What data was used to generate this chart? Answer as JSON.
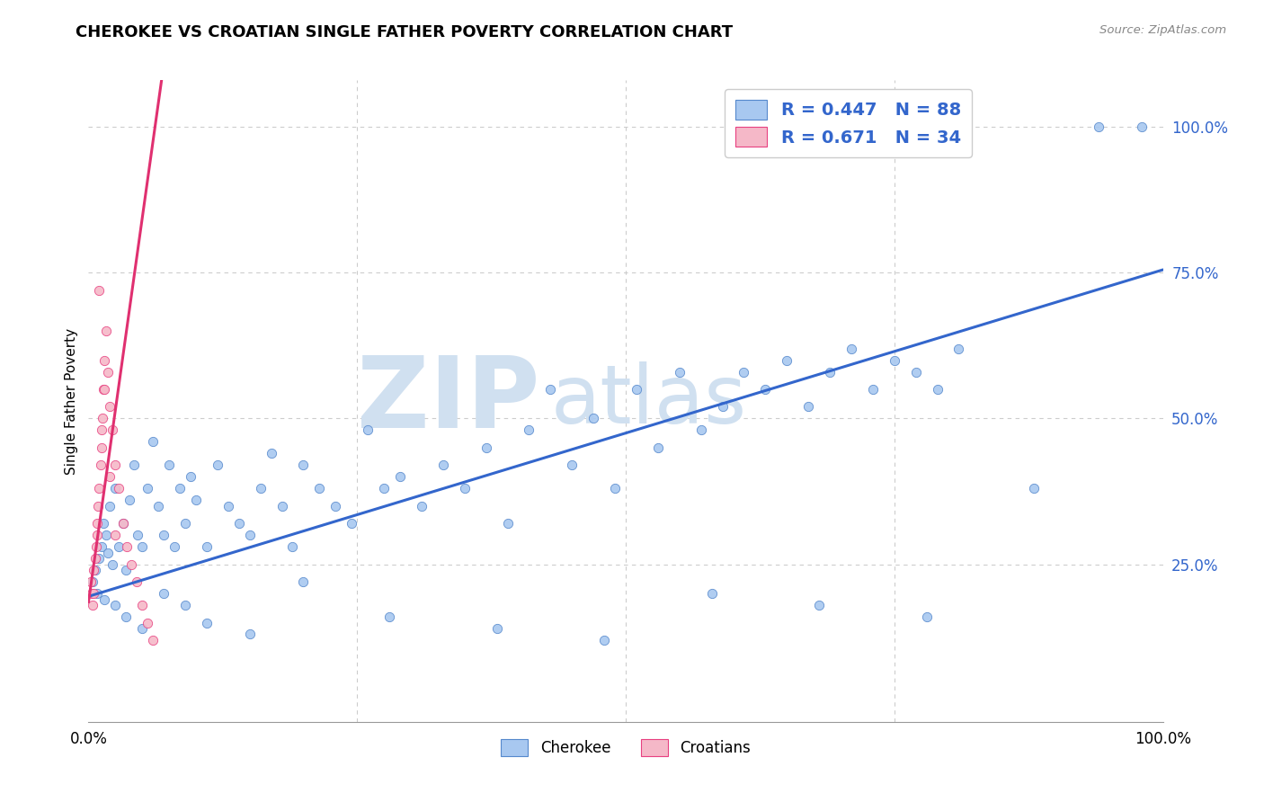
{
  "title": "CHEROKEE VS CROATIAN SINGLE FATHER POVERTY CORRELATION CHART",
  "source": "Source: ZipAtlas.com",
  "ylabel": "Single Father Poverty",
  "watermark_zip": "ZIP",
  "watermark_atlas": "atlas",
  "legend_line1": "R = 0.447   N = 88",
  "legend_line2": "R = 0.671   N = 34",
  "cherokee_color": "#a8c8f0",
  "croatian_color": "#f5b8c8",
  "cherokee_edge_color": "#5588cc",
  "croatian_edge_color": "#e84080",
  "cherokee_line_color": "#3366cc",
  "croatian_line_color": "#e03070",
  "legend_text_color": "#3366cc",
  "right_tick_color": "#3366cc",
  "xlim": [
    0.0,
    1.0
  ],
  "ylim": [
    -0.02,
    1.08
  ],
  "ytick_values": [
    0.25,
    0.5,
    0.75,
    1.0
  ],
  "ytick_labels": [
    "25.0%",
    "50.0%",
    "75.0%",
    "100.0%"
  ],
  "xtick_values": [
    0.0,
    1.0
  ],
  "xtick_labels": [
    "0.0%",
    "100.0%"
  ],
  "grid_color": "#cccccc",
  "background_color": "#ffffff",
  "watermark_color": "#d0e0f0",
  "scatter_size": 55,
  "cherokee_x": [
    0.004,
    0.006,
    0.008,
    0.01,
    0.012,
    0.014,
    0.016,
    0.018,
    0.02,
    0.022,
    0.025,
    0.028,
    0.032,
    0.035,
    0.038,
    0.042,
    0.046,
    0.05,
    0.055,
    0.06,
    0.065,
    0.07,
    0.075,
    0.08,
    0.085,
    0.09,
    0.095,
    0.1,
    0.11,
    0.12,
    0.13,
    0.14,
    0.15,
    0.16,
    0.17,
    0.18,
    0.19,
    0.2,
    0.215,
    0.23,
    0.245,
    0.26,
    0.275,
    0.29,
    0.31,
    0.33,
    0.35,
    0.37,
    0.39,
    0.41,
    0.43,
    0.45,
    0.47,
    0.49,
    0.51,
    0.53,
    0.55,
    0.57,
    0.59,
    0.61,
    0.63,
    0.65,
    0.67,
    0.69,
    0.71,
    0.73,
    0.75,
    0.77,
    0.79,
    0.81,
    0.015,
    0.025,
    0.035,
    0.05,
    0.07,
    0.09,
    0.11,
    0.15,
    0.2,
    0.28,
    0.38,
    0.48,
    0.58,
    0.68,
    0.78,
    0.88,
    0.94,
    0.98
  ],
  "cherokee_y": [
    0.22,
    0.24,
    0.2,
    0.26,
    0.28,
    0.32,
    0.3,
    0.27,
    0.35,
    0.25,
    0.38,
    0.28,
    0.32,
    0.24,
    0.36,
    0.42,
    0.3,
    0.28,
    0.38,
    0.46,
    0.35,
    0.3,
    0.42,
    0.28,
    0.38,
    0.32,
    0.4,
    0.36,
    0.28,
    0.42,
    0.35,
    0.32,
    0.3,
    0.38,
    0.44,
    0.35,
    0.28,
    0.42,
    0.38,
    0.35,
    0.32,
    0.48,
    0.38,
    0.4,
    0.35,
    0.42,
    0.38,
    0.45,
    0.32,
    0.48,
    0.55,
    0.42,
    0.5,
    0.38,
    0.55,
    0.45,
    0.58,
    0.48,
    0.52,
    0.58,
    0.55,
    0.6,
    0.52,
    0.58,
    0.62,
    0.55,
    0.6,
    0.58,
    0.55,
    0.62,
    0.19,
    0.18,
    0.16,
    0.14,
    0.2,
    0.18,
    0.15,
    0.13,
    0.22,
    0.16,
    0.14,
    0.12,
    0.2,
    0.18,
    0.16,
    0.38,
    1.0,
    1.0
  ],
  "croatian_x": [
    0.002,
    0.003,
    0.004,
    0.005,
    0.006,
    0.007,
    0.008,
    0.009,
    0.01,
    0.011,
    0.012,
    0.013,
    0.014,
    0.015,
    0.016,
    0.018,
    0.02,
    0.022,
    0.025,
    0.028,
    0.032,
    0.036,
    0.04,
    0.045,
    0.05,
    0.055,
    0.06,
    0.005,
    0.008,
    0.012,
    0.015,
    0.02,
    0.025,
    0.01
  ],
  "croatian_y": [
    0.22,
    0.2,
    0.18,
    0.24,
    0.26,
    0.28,
    0.3,
    0.35,
    0.38,
    0.42,
    0.45,
    0.5,
    0.55,
    0.6,
    0.65,
    0.58,
    0.52,
    0.48,
    0.42,
    0.38,
    0.32,
    0.28,
    0.25,
    0.22,
    0.18,
    0.15,
    0.12,
    0.2,
    0.32,
    0.48,
    0.55,
    0.4,
    0.3,
    0.72
  ],
  "cro_line_x0": 0.0,
  "cro_line_y0": 0.185,
  "cro_line_x1": 0.068,
  "cro_line_y1": 1.08,
  "cher_line_x0": 0.0,
  "cher_line_y0": 0.195,
  "cher_line_x1": 1.0,
  "cher_line_y1": 0.755
}
